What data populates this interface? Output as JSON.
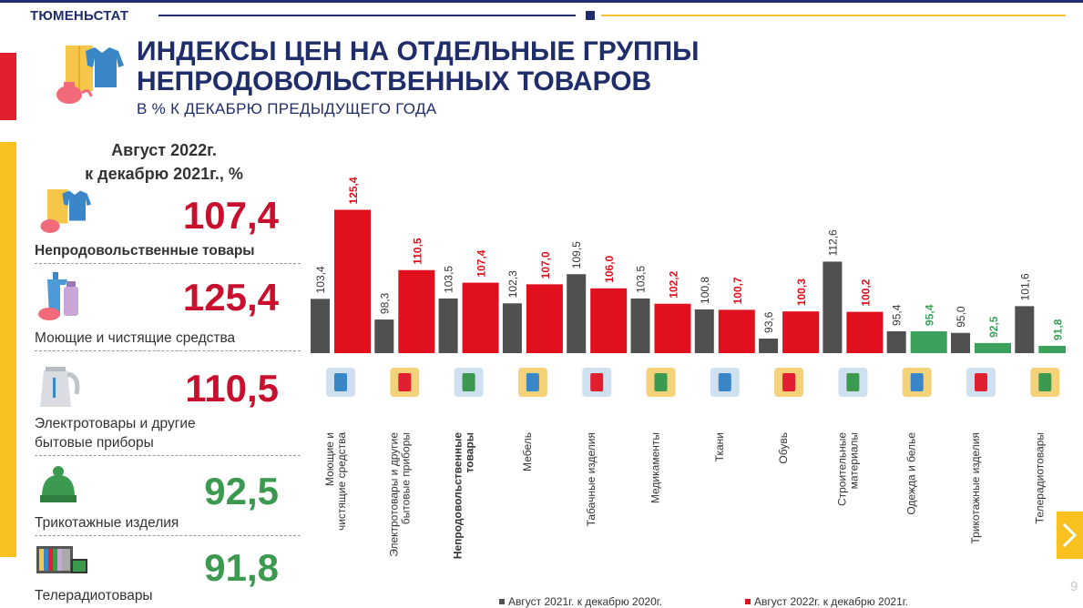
{
  "header": {
    "org": "ТЮМЕНЬСТАТ"
  },
  "title": {
    "line1": "ИНДЕКСЫ ЦЕН НА ОТДЕЛЬНЫЕ ГРУППЫ",
    "line2": "НЕПРОДОВОЛЬСТВЕННЫХ ТОВАРОВ",
    "subtitle": "В % К ДЕКАБРЮ ПРЕДЫДУЩЕГО ГОДА"
  },
  "left_panel": {
    "header_line1": "Август 2022г.",
    "header_line2": "к декабрю 2021г., %",
    "items": [
      {
        "value": "107,4",
        "label": "Непродовольственные товары",
        "color": "#c8102e",
        "icon": "clothes-icon"
      },
      {
        "value": "125,4",
        "label": "Моющие и чистящие средства",
        "color": "#c8102e",
        "icon": "detergent-icon"
      },
      {
        "value": "110,5",
        "label_line1": "Электротовары и другие",
        "label_line2": "бытовые приборы",
        "color": "#c8102e",
        "icon": "kettle-icon"
      },
      {
        "value": "92,5",
        "label": "Трикотажные изделия",
        "color": "#3b9a4f",
        "icon": "knit-hat-icon"
      },
      {
        "value": "91,8",
        "label": "Телерадиотовары",
        "color": "#3b9a4f",
        "icon": "tv-icon"
      }
    ]
  },
  "chart_data": {
    "type": "bar",
    "categories": [
      "Моющие и чистящие средства",
      "Электротовары и другие бытовые приборы",
      "Непродовольственные товары",
      "Мебель",
      "Табачные изделия",
      "Медикаменты",
      "Ткани",
      "Обувь",
      "Строительные материалы",
      "Одежда и белье",
      "Трикотажные изделия",
      "Телерадиотовары"
    ],
    "series": [
      {
        "name": "Август 2021г. к декабрю 2020г.",
        "values": [
          103.4,
          98.3,
          103.5,
          102.3,
          109.5,
          103.5,
          100.8,
          93.6,
          112.6,
          95.4,
          95.0,
          101.6
        ],
        "labels": [
          "103,4",
          "98,3",
          "103,5",
          "102,3",
          "109,5",
          "103,5",
          "100,8",
          "93,6",
          "112,6",
          "95,4",
          "95,0",
          "101,6"
        ]
      },
      {
        "name": "Август 2022г. к декабрю 2021г.",
        "values": [
          125.4,
          110.5,
          107.4,
          107.0,
          106.0,
          102.2,
          100.7,
          100.3,
          100.2,
          95.4,
          92.5,
          91.8
        ],
        "labels": [
          "125,4",
          "110,5",
          "107,4",
          "107,0",
          "106,0",
          "102,2",
          "100,7",
          "100,3",
          "100,2",
          "95,4",
          "92,5",
          "91,8"
        ]
      }
    ],
    "colors": {
      "series1": "#505050",
      "series2_up": "#e0101e",
      "series2_down": "#3ca15a"
    }
  },
  "footer": {
    "page": "9"
  }
}
